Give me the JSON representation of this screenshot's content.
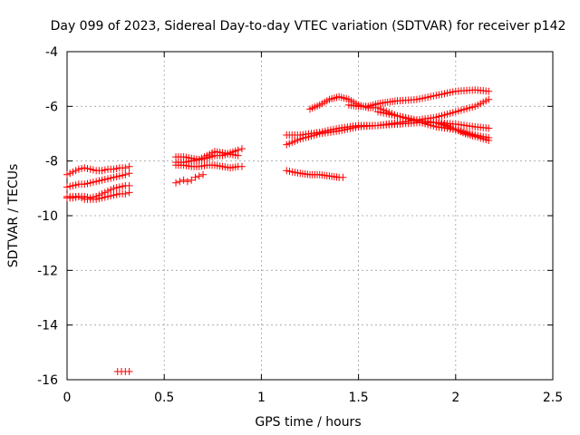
{
  "chart_data": {
    "type": "scatter",
    "title": "Day 099 of 2023, Sidereal Day-to-day VTEC variation (SDTVAR) for receiver p142",
    "xlabel": "GPS time / hours",
    "ylabel": "SDTVAR / TECUs",
    "xlim": [
      0,
      2.5
    ],
    "ylim": [
      -16,
      -4
    ],
    "xticks": [
      "0",
      "0.5",
      "1",
      "1.5",
      "2",
      "2.5"
    ],
    "yticks": [
      "-4",
      "-6",
      "-8",
      "-10",
      "-12",
      "-14",
      "-16"
    ],
    "grid": true,
    "marker": "plus",
    "color": "#ff0000",
    "series": [
      {
        "x": [
          0.0,
          0.03,
          0.06,
          0.09,
          0.12,
          0.15,
          0.18,
          0.21,
          0.24,
          0.27,
          0.3,
          0.32
        ],
        "y": [
          -8.5,
          -8.4,
          -8.3,
          -8.25,
          -8.3,
          -8.35,
          -8.35,
          -8.3,
          -8.3,
          -8.25,
          -8.25,
          -8.2
        ]
      },
      {
        "x": [
          0.0,
          0.03,
          0.06,
          0.09,
          0.12,
          0.15,
          0.18,
          0.21,
          0.24,
          0.27,
          0.3,
          0.32
        ],
        "y": [
          -8.95,
          -8.9,
          -8.85,
          -8.85,
          -8.8,
          -8.75,
          -8.7,
          -8.65,
          -8.6,
          -8.55,
          -8.5,
          -8.45
        ]
      },
      {
        "x": [
          0.0,
          0.03,
          0.06,
          0.09,
          0.12,
          0.15,
          0.18,
          0.21,
          0.24,
          0.27,
          0.3,
          0.32
        ],
        "y": [
          -9.35,
          -9.35,
          -9.3,
          -9.3,
          -9.35,
          -9.3,
          -9.2,
          -9.1,
          -9.0,
          -8.95,
          -8.9,
          -8.9
        ]
      },
      {
        "x": [
          0.0,
          0.03,
          0.06,
          0.09,
          0.12,
          0.15,
          0.18,
          0.21,
          0.24,
          0.27,
          0.3,
          0.32
        ],
        "y": [
          -9.3,
          -9.3,
          -9.3,
          -9.4,
          -9.4,
          -9.4,
          -9.35,
          -9.3,
          -9.25,
          -9.2,
          -9.2,
          -9.15
        ]
      },
      {
        "x": [
          0.26,
          0.28,
          0.3,
          0.32
        ],
        "y": [
          -15.7,
          -15.7,
          -15.7,
          -15.7
        ]
      },
      {
        "x": [
          0.56,
          0.6,
          0.64,
          0.68,
          0.72,
          0.76,
          0.8,
          0.84,
          0.88,
          0.9
        ],
        "y": [
          -7.85,
          -7.85,
          -7.9,
          -7.95,
          -7.9,
          -7.8,
          -7.8,
          -7.7,
          -7.6,
          -7.55
        ]
      },
      {
        "x": [
          0.56,
          0.6,
          0.64,
          0.68,
          0.72,
          0.76,
          0.8,
          0.84,
          0.88
        ],
        "y": [
          -8.05,
          -8.05,
          -8.0,
          -7.95,
          -7.8,
          -7.65,
          -7.7,
          -7.75,
          -7.8
        ]
      },
      {
        "x": [
          0.56,
          0.6,
          0.64,
          0.68,
          0.72,
          0.76,
          0.8,
          0.84,
          0.88,
          0.9
        ],
        "y": [
          -8.15,
          -8.15,
          -8.2,
          -8.2,
          -8.15,
          -8.15,
          -8.2,
          -8.25,
          -8.2,
          -8.2
        ]
      },
      {
        "x": [
          0.56,
          0.58,
          0.6,
          0.62,
          0.64,
          0.66,
          0.68,
          0.7
        ],
        "y": [
          -8.8,
          -8.75,
          -8.7,
          -8.75,
          -8.7,
          -8.6,
          -8.55,
          -8.5
        ]
      },
      {
        "x": [
          1.13,
          1.16,
          1.2,
          1.25,
          1.3,
          1.35,
          1.4,
          1.42
        ],
        "y": [
          -8.35,
          -8.4,
          -8.45,
          -8.5,
          -8.5,
          -8.55,
          -8.6,
          -8.6
        ]
      },
      {
        "x": [
          1.13,
          1.2,
          1.3,
          1.4,
          1.5,
          1.6,
          1.7,
          1.8,
          1.9,
          2.0,
          2.1,
          2.17
        ],
        "y": [
          -7.05,
          -7.05,
          -6.95,
          -6.8,
          -6.7,
          -6.7,
          -6.65,
          -6.6,
          -6.6,
          -6.65,
          -6.75,
          -6.8
        ]
      },
      {
        "x": [
          1.13,
          1.2,
          1.3,
          1.4,
          1.5,
          1.6,
          1.7,
          1.8,
          1.9,
          2.0,
          2.1,
          2.17
        ],
        "y": [
          -7.4,
          -7.2,
          -7.0,
          -6.9,
          -6.75,
          -6.7,
          -6.6,
          -6.5,
          -6.4,
          -6.2,
          -6.0,
          -5.75
        ]
      },
      {
        "x": [
          1.25,
          1.3,
          1.35,
          1.4,
          1.45,
          1.5,
          1.55,
          1.6,
          1.7,
          1.8,
          1.9,
          2.0,
          2.1,
          2.17
        ],
        "y": [
          -6.1,
          -5.95,
          -5.75,
          -5.65,
          -5.75,
          -5.95,
          -6.05,
          -6.05,
          -6.35,
          -6.55,
          -6.75,
          -6.85,
          -7.05,
          -7.15
        ]
      },
      {
        "x": [
          1.45,
          1.5,
          1.55,
          1.6,
          1.65,
          1.7,
          1.8,
          1.9,
          2.0,
          2.1,
          2.17
        ],
        "y": [
          -5.95,
          -6.0,
          -6.0,
          -5.9,
          -5.85,
          -5.8,
          -5.75,
          -5.6,
          -5.45,
          -5.4,
          -5.45
        ]
      },
      {
        "x": [
          1.6,
          1.7,
          1.8,
          1.9,
          1.95,
          2.0,
          2.05,
          2.1,
          2.17
        ],
        "y": [
          -6.2,
          -6.35,
          -6.5,
          -6.6,
          -6.7,
          -6.85,
          -7.0,
          -7.1,
          -7.25
        ]
      }
    ]
  }
}
